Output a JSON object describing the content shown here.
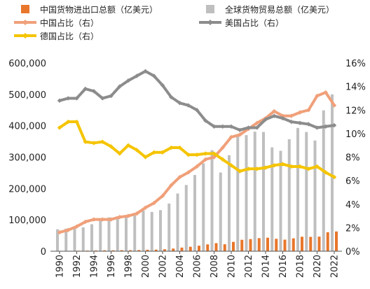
{
  "chart_data": {
    "type": "bar",
    "x": [
      1990,
      1991,
      1992,
      1993,
      1994,
      1995,
      1996,
      1997,
      1998,
      1999,
      2000,
      2001,
      2002,
      2003,
      2004,
      2005,
      2006,
      2007,
      2008,
      2009,
      2010,
      2011,
      2012,
      2013,
      2014,
      2015,
      2016,
      2017,
      2018,
      2019,
      2020,
      2021,
      2022
    ],
    "x_tick_labels": [
      "1990",
      "1992",
      "1994",
      "1996",
      "1998",
      "2000",
      "2002",
      "2004",
      "2006",
      "2008",
      "2010",
      "2012",
      "2014",
      "2016",
      "2018",
      "2020",
      "2022"
    ],
    "left_axis": {
      "ylim": [
        0,
        600000
      ],
      "ticks": [
        "0",
        "100,000",
        "200,000",
        "300,000",
        "400,000",
        "500,000",
        "600,000"
      ]
    },
    "right_axis": {
      "ylim": [
        0,
        16
      ],
      "ticks": [
        "0%",
        "2%",
        "4%",
        "6%",
        "8%",
        "10%",
        "12%",
        "14%",
        "16%"
      ]
    },
    "grid": false,
    "legend_position": "top",
    "series": [
      {
        "name": "中国货物进出口总额（亿美元）",
        "type": "bar",
        "axis": "left",
        "color": "#E8762B",
        "values": [
          1154,
          1357,
          1656,
          1957,
          2366,
          2808,
          2899,
          3252,
          3240,
          3606,
          4743,
          5097,
          6208,
          8510,
          11546,
          14219,
          17604,
          21761,
          25632,
          22075,
          29740,
          36418,
          38671,
          41590,
          43015,
          39530,
          36856,
          41071,
          46224,
          45761,
          46559,
          60515,
          62950
        ]
      },
      {
        "name": "全球货物贸易总额（亿美元）",
        "type": "bar",
        "axis": "left",
        "color": "#BFBFBF",
        "values": [
          70000,
          72000,
          76000,
          76000,
          86000,
          104000,
          108000,
          111000,
          110000,
          114000,
          130000,
          125000,
          131000,
          152000,
          184000,
          211000,
          243000,
          280000,
          322000,
          251000,
          306000,
          366000,
          370000,
          381000,
          380000,
          331000,
          320000,
          357000,
          393000,
          380000,
          353000,
          449000,
          500000
        ]
      },
      {
        "name": "中国占比（右）",
        "type": "line",
        "axis": "right",
        "color": "#F0A07A",
        "values": [
          1.6,
          1.8,
          2.1,
          2.5,
          2.7,
          2.7,
          2.7,
          2.9,
          3.0,
          3.2,
          3.7,
          4.1,
          4.7,
          5.6,
          6.3,
          6.7,
          7.2,
          7.8,
          8.0,
          8.8,
          9.7,
          9.9,
          10.4,
          10.9,
          11.3,
          11.9,
          11.5,
          11.5,
          11.8,
          12.0,
          13.2,
          13.5,
          12.4
        ]
      },
      {
        "name": "美国占比（右）",
        "type": "line",
        "axis": "right",
        "color": "#8C8C8C",
        "values": [
          12.8,
          13.0,
          13.0,
          13.8,
          13.6,
          13.0,
          13.2,
          14.0,
          14.5,
          14.9,
          15.3,
          14.9,
          14.1,
          13.1,
          12.6,
          12.4,
          12.0,
          11.1,
          10.6,
          10.6,
          10.6,
          10.3,
          10.5,
          10.5,
          11.2,
          11.5,
          11.3,
          11.0,
          10.9,
          10.8,
          10.5,
          10.6,
          10.7
        ]
      },
      {
        "name": "德国占比（右）",
        "type": "line",
        "axis": "right",
        "color": "#F5C400",
        "values": [
          10.5,
          11.0,
          11.0,
          9.3,
          9.2,
          9.3,
          8.9,
          8.3,
          9.0,
          8.6,
          8.0,
          8.4,
          8.4,
          8.8,
          8.8,
          8.2,
          8.2,
          8.3,
          8.3,
          7.8,
          7.3,
          6.8,
          7.0,
          7.0,
          7.1,
          7.3,
          7.4,
          7.2,
          7.2,
          7.0,
          7.2,
          6.7,
          6.3
        ]
      }
    ]
  }
}
